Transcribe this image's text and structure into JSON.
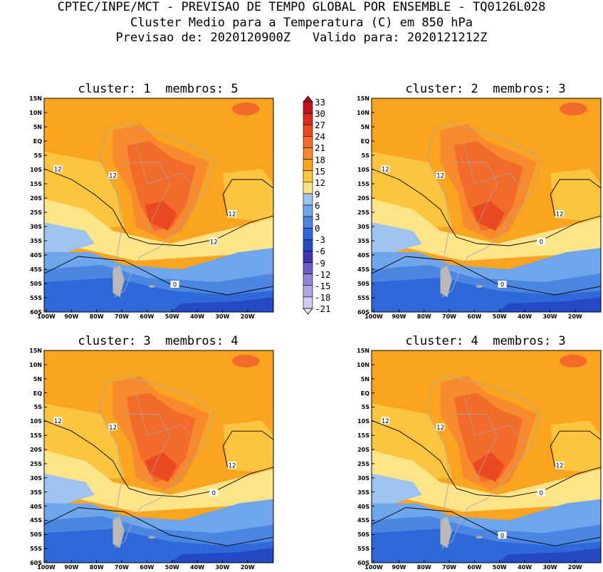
{
  "header": {
    "line1": "CPTEC/INPE/MCT - PREVISAO DE TEMPO GLOBAL POR ENSEMBLE - TQ0126L028",
    "line2": "Cluster Medio para a Temperatura (C) em 850 hPa",
    "line3": "Previsao de: 2020120900Z   Valido para: 2020121212Z"
  },
  "panels": [
    {
      "title": "cluster: 1  membros: 5",
      "contour_labels": [
        "12",
        "12",
        "12",
        "12",
        "0"
      ]
    },
    {
      "title": "cluster: 2  membros: 3",
      "contour_labels": [
        "12",
        "12",
        "12",
        "0",
        "0"
      ]
    },
    {
      "title": "cluster: 3  membros: 4",
      "contour_labels": [
        "12",
        "12",
        "12",
        "0"
      ]
    },
    {
      "title": "cluster: 4  membros: 3",
      "contour_labels": [
        "12",
        "12",
        "12",
        "0",
        "0"
      ]
    }
  ],
  "axes": {
    "lat_labels": [
      "15N",
      "10N",
      "5N",
      "EQ",
      "5S",
      "10S",
      "15S",
      "20S",
      "25S",
      "30S",
      "35S",
      "40S",
      "45S",
      "50S",
      "55S",
      "60S"
    ],
    "lon_labels": [
      "100W",
      "90W",
      "80W",
      "70W",
      "60W",
      "50W",
      "40W",
      "30W",
      "20W"
    ]
  },
  "colorbar": {
    "levels": [
      "33",
      "30",
      "27",
      "24",
      "21",
      "18",
      "15",
      "12",
      "9",
      "6",
      "3",
      "0",
      "-3",
      "-6",
      "-9",
      "-12",
      "-15",
      "-18",
      "-21"
    ],
    "colors": [
      "#a50f15",
      "#c4151c",
      "#d92b20",
      "#ea4a21",
      "#f26b2a",
      "#f7892f",
      "#fba41f",
      "#fcc53f",
      "#fde489",
      "#9fc3ef",
      "#6fa5ea",
      "#4a86e2",
      "#2f69d9",
      "#2549c3",
      "#3d37b2",
      "#6e5cc8",
      "#9584d7",
      "#b3a6e2",
      "#d3caef",
      "#eae4f8"
    ]
  }
}
